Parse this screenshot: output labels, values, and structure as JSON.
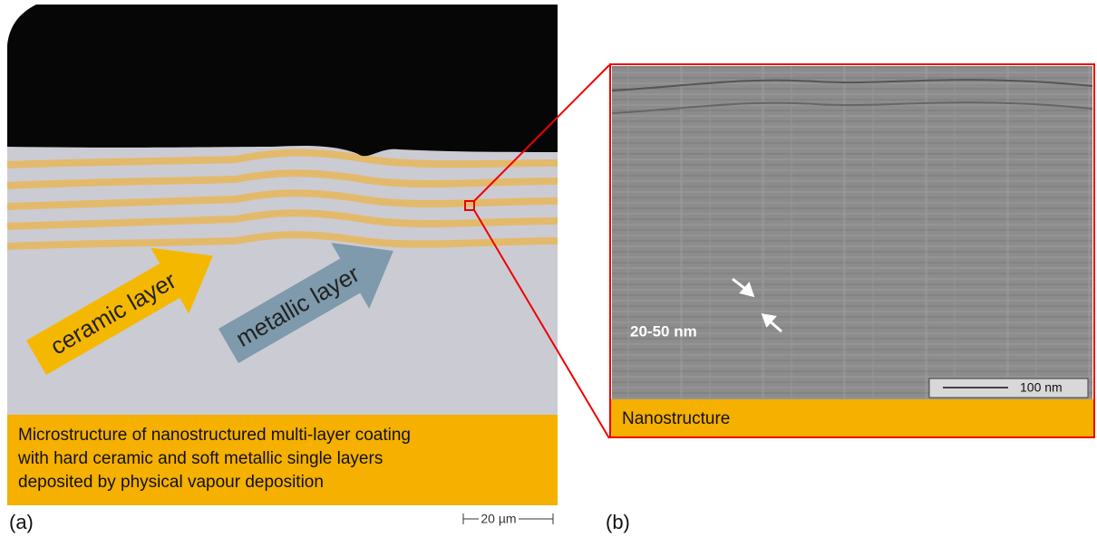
{
  "panel_a": {
    "label": "(a)",
    "arrows": [
      "ceramic layer",
      "metallic layer"
    ],
    "caption_lines": [
      "Microstructure of nanostructured multi-layer coating",
      "with hard ceramic and soft metallic single layers",
      "deposited by physical vapour deposition"
    ],
    "scale_bar": "20 µm"
  },
  "panel_b": {
    "label": "(b)",
    "caption": "Nanostructure",
    "annotation": "20-50 nm",
    "scale_bar": "100 nm"
  }
}
